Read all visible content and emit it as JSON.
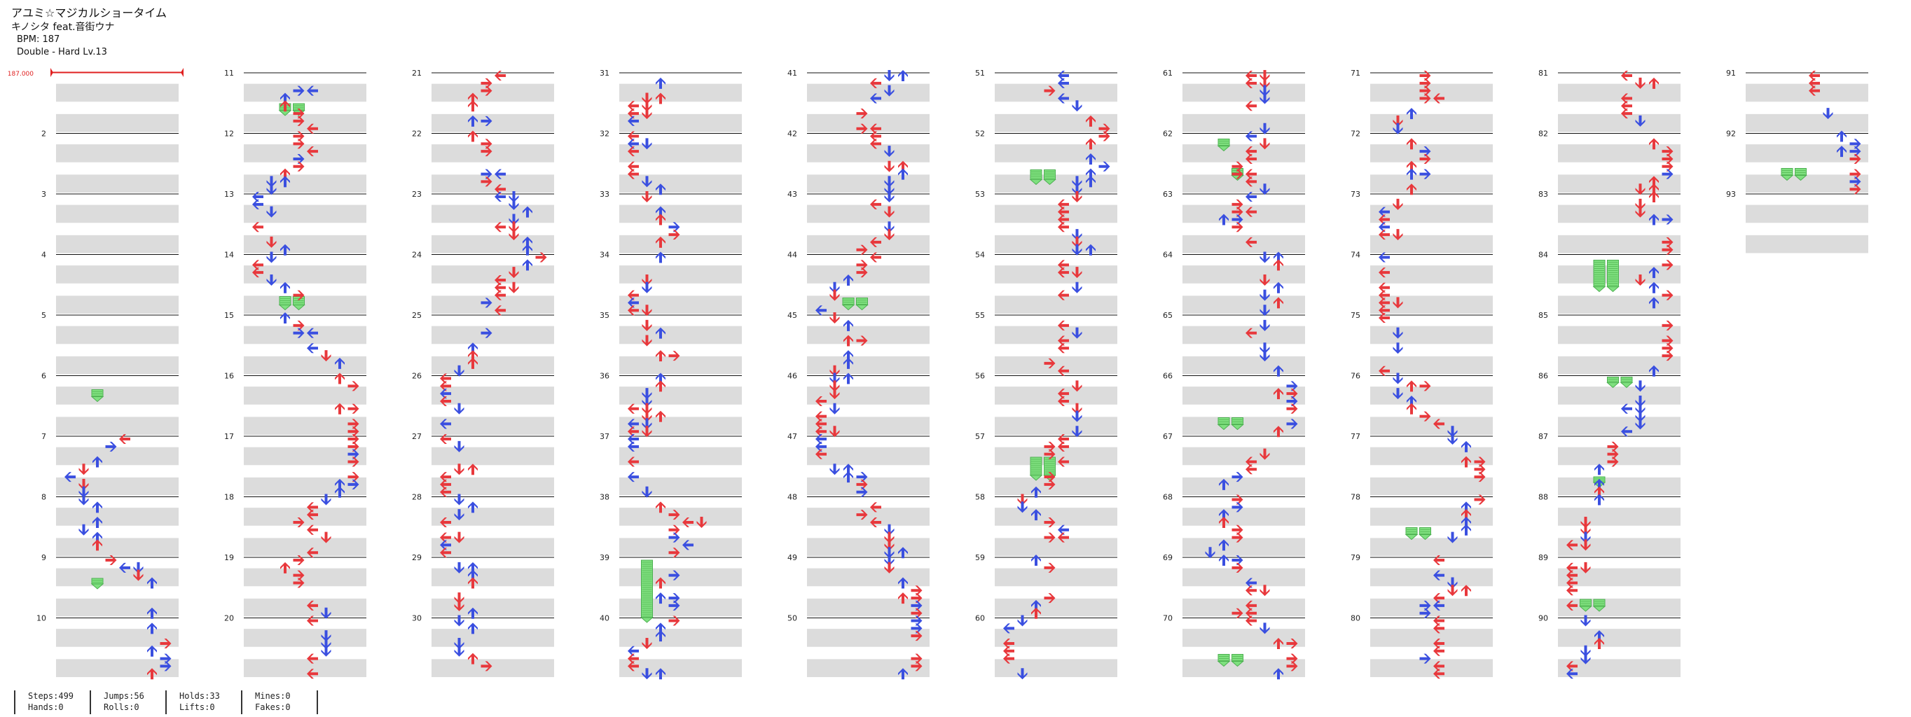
{
  "song": {
    "title": "アユミ☆マジカルショータイム",
    "artist": "キノシタ feat.音街ウナ",
    "bpm": "BPM: 187",
    "difficulty": "Double - Hard Lv.13"
  },
  "bpm_marker": "187.000",
  "measure_labels": [
    "2",
    "3",
    "4",
    "5",
    "6",
    "7",
    "8",
    "9",
    "10",
    "11",
    "12",
    "13",
    "14",
    "15",
    "16",
    "17",
    "18",
    "19",
    "20",
    "21",
    "22",
    "23",
    "24",
    "25",
    "26",
    "27",
    "28",
    "29",
    "30",
    "31",
    "32",
    "33",
    "34",
    "35",
    "36",
    "37",
    "38",
    "39",
    "40",
    "41",
    "42",
    "43",
    "44",
    "45",
    "46",
    "47",
    "48",
    "49",
    "50",
    "51",
    "52",
    "53",
    "54",
    "55",
    "56",
    "57",
    "58",
    "59",
    "60",
    "61",
    "62",
    "63",
    "64",
    "65",
    "66",
    "67",
    "68",
    "69",
    "70",
    "71",
    "72",
    "73",
    "74",
    "75",
    "76",
    "77",
    "78",
    "79",
    "80",
    "81",
    "82",
    "83",
    "84",
    "85",
    "86",
    "87",
    "88",
    "89",
    "90",
    "91",
    "92",
    "93"
  ],
  "stats": {
    "steps": "Steps:499",
    "hands": "Hands:0",
    "jumps": "Jumps:56",
    "rolls": "Rolls:0",
    "holds": "Holds:33",
    "lifts": "Lifts:0",
    "mines": "Mines:0",
    "fakes": "Fakes:0"
  },
  "colors": {
    "red_note": "#e8383c",
    "blue_note": "#3a4fe0",
    "hold": "#7fe07f",
    "band": "#dcdcdc",
    "measure_line": "#111111",
    "bpm_line": "#e02020"
  },
  "icons": {
    "note": "arrow-note-icon",
    "hold": "hold-note-icon"
  }
}
